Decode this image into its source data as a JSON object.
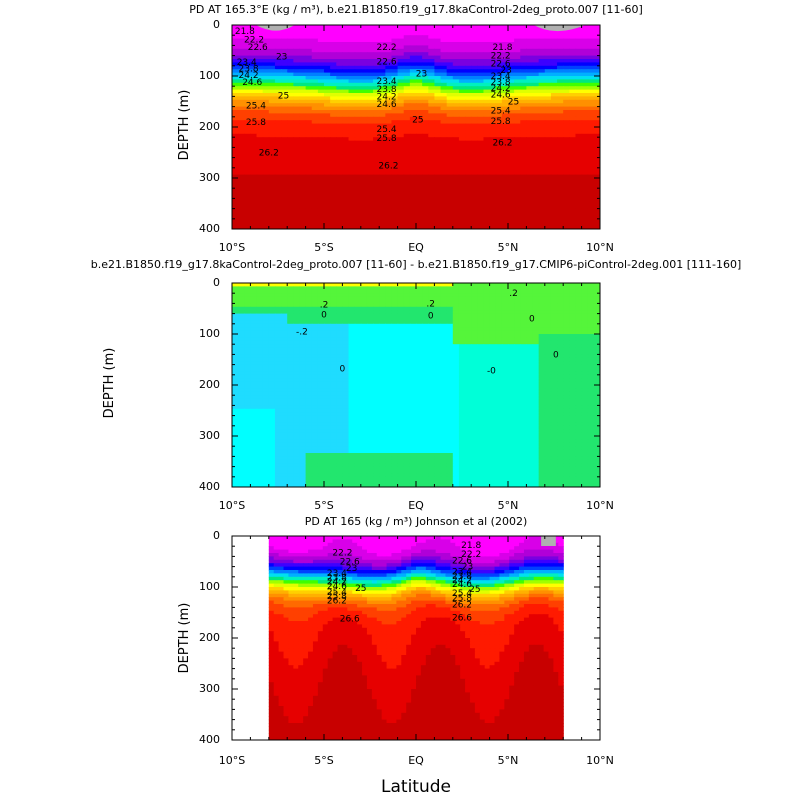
{
  "chart_data": [
    {
      "type": "heatmap",
      "title": "PD AT 165.3°E (kg / m³), b.e21.B1850.f19_g17.8kaControl-2deg_proto.007 [11-60]",
      "ylabel": "DEPTH (m)",
      "xlabel": "",
      "xlim": [
        -10,
        10
      ],
      "ylim": [
        0,
        400
      ],
      "x_ticks": [
        "10°S",
        "5°S",
        "EQ",
        "5°N",
        "10°N"
      ],
      "y_ticks": [
        "0",
        "100",
        "200",
        "300",
        "400"
      ],
      "data_extent": [
        -10,
        10
      ],
      "field_kind": "density",
      "contour_labels": [
        {
          "text": "21.8",
          "x": -9.3,
          "y": 12
        },
        {
          "text": "22.2",
          "x": -8.8,
          "y": 28
        },
        {
          "text": "22.6",
          "x": -8.6,
          "y": 43
        },
        {
          "text": "23",
          "x": -7.3,
          "y": 62
        },
        {
          "text": "23.4",
          "x": -9.2,
          "y": 73
        },
        {
          "text": "23.8",
          "x": -9.1,
          "y": 85
        },
        {
          "text": "24.2",
          "x": -9.1,
          "y": 98
        },
        {
          "text": "24.6",
          "x": -8.9,
          "y": 112
        },
        {
          "text": "25",
          "x": -7.2,
          "y": 138
        },
        {
          "text": "25.4",
          "x": -8.7,
          "y": 158
        },
        {
          "text": "25.8",
          "x": -8.7,
          "y": 190
        },
        {
          "text": "26.2",
          "x": -8.0,
          "y": 250
        },
        {
          "text": "22.2",
          "x": -1.6,
          "y": 43
        },
        {
          "text": "22.6",
          "x": -1.6,
          "y": 72
        },
        {
          "text": "23",
          "x": 0.3,
          "y": 95
        },
        {
          "text": "23.4",
          "x": -1.6,
          "y": 110
        },
        {
          "text": "23.8",
          "x": -1.6,
          "y": 125
        },
        {
          "text": "24.2",
          "x": -1.6,
          "y": 140
        },
        {
          "text": "24.6",
          "x": -1.6,
          "y": 155
        },
        {
          "text": "25",
          "x": 0.1,
          "y": 185
        },
        {
          "text": "25.4",
          "x": -1.6,
          "y": 204
        },
        {
          "text": "25.8",
          "x": -1.6,
          "y": 222
        },
        {
          "text": "26.2",
          "x": -1.5,
          "y": 275
        },
        {
          "text": "21.8",
          "x": 4.7,
          "y": 43
        },
        {
          "text": "22.2",
          "x": 4.6,
          "y": 60
        },
        {
          "text": "22.6",
          "x": 4.6,
          "y": 75
        },
        {
          "text": "23",
          "x": 4.9,
          "y": 88
        },
        {
          "text": "23.4",
          "x": 4.6,
          "y": 100
        },
        {
          "text": "23.8",
          "x": 4.6,
          "y": 112
        },
        {
          "text": "24.2",
          "x": 4.6,
          "y": 124
        },
        {
          "text": "24.6",
          "x": 4.6,
          "y": 136
        },
        {
          "text": "25",
          "x": 5.3,
          "y": 150
        },
        {
          "text": "25.4",
          "x": 4.6,
          "y": 168
        },
        {
          "text": "25.8",
          "x": 4.6,
          "y": 188
        },
        {
          "text": "26.2",
          "x": 4.7,
          "y": 230
        }
      ]
    },
    {
      "type": "heatmap",
      "title": "b.e21.B1850.f19_g17.8kaControl-2deg_proto.007 [11-60] - b.e21.B1850.f19_g17.CMIP6-piControl-2deg.001 [111-160]",
      "ylabel": "DEPTH (m)",
      "xlabel": "",
      "xlim": [
        -10,
        10
      ],
      "ylim": [
        0,
        400
      ],
      "x_ticks": [
        "10°S",
        "5°S",
        "EQ",
        "5°N",
        "10°N"
      ],
      "y_ticks": [
        "0",
        "100",
        "200",
        "300",
        "400"
      ],
      "data_extent": [
        -10,
        10
      ],
      "field_kind": "difference",
      "contour_labels": [
        {
          "text": ".2",
          "x": 5.3,
          "y": 20
        },
        {
          "text": ".2",
          "x": -5.0,
          "y": 42
        },
        {
          "text": ".2",
          "x": 0.8,
          "y": 40
        },
        {
          "text": "0",
          "x": -5.0,
          "y": 62
        },
        {
          "text": "0",
          "x": 0.8,
          "y": 64
        },
        {
          "text": "0",
          "x": 6.3,
          "y": 70
        },
        {
          "text": "-.2",
          "x": -6.2,
          "y": 95
        },
        {
          "text": "0",
          "x": 7.6,
          "y": 140
        },
        {
          "text": "0",
          "x": -4.0,
          "y": 168
        },
        {
          "text": "-0",
          "x": 4.1,
          "y": 172
        }
      ]
    },
    {
      "type": "heatmap",
      "title": "PD AT 165 (kg / m³) Johnson et al (2002)",
      "ylabel": "DEPTH (m)",
      "xlabel": "Latitude",
      "xlim": [
        -10,
        10
      ],
      "ylim": [
        0,
        400
      ],
      "x_ticks": [
        "10°S",
        "5°S",
        "EQ",
        "5°N",
        "10°N"
      ],
      "y_ticks": [
        "0",
        "100",
        "200",
        "300",
        "400"
      ],
      "data_extent": [
        -8,
        8
      ],
      "field_kind": "density_obs",
      "contour_labels": [
        {
          "text": "21.8",
          "x": 3.0,
          "y": 18
        },
        {
          "text": "22.2",
          "x": -4.0,
          "y": 32
        },
        {
          "text": "22.2",
          "x": 3.0,
          "y": 35
        },
        {
          "text": "22.6",
          "x": -3.6,
          "y": 50
        },
        {
          "text": "22.6",
          "x": 2.5,
          "y": 48
        },
        {
          "text": "23",
          "x": -3.5,
          "y": 63
        },
        {
          "text": "23",
          "x": 2.8,
          "y": 60
        },
        {
          "text": "23.4",
          "x": -4.3,
          "y": 73
        },
        {
          "text": "23.4",
          "x": 2.5,
          "y": 70
        },
        {
          "text": "23.8",
          "x": -4.3,
          "y": 81
        },
        {
          "text": "23.8",
          "x": 2.5,
          "y": 78
        },
        {
          "text": "24.2",
          "x": -4.3,
          "y": 89
        },
        {
          "text": "24.2",
          "x": 2.5,
          "y": 86
        },
        {
          "text": "24.6",
          "x": -4.3,
          "y": 98
        },
        {
          "text": "24.6",
          "x": 2.5,
          "y": 94
        },
        {
          "text": "25",
          "x": -3.0,
          "y": 102
        },
        {
          "text": "25",
          "x": 3.2,
          "y": 104
        },
        {
          "text": "25.4",
          "x": -4.3,
          "y": 110
        },
        {
          "text": "25.4",
          "x": 2.5,
          "y": 112
        },
        {
          "text": "25.8",
          "x": -4.3,
          "y": 118
        },
        {
          "text": "25.8",
          "x": 2.5,
          "y": 122
        },
        {
          "text": "26.2",
          "x": -4.3,
          "y": 126
        },
        {
          "text": "26.2",
          "x": 2.5,
          "y": 134
        },
        {
          "text": "26.6",
          "x": -3.6,
          "y": 162
        },
        {
          "text": "26.6",
          "x": 2.5,
          "y": 160
        }
      ]
    }
  ],
  "colors": {
    "density_ramp": [
      "#ff00ff",
      "#d800e8",
      "#b000d8",
      "#7a00e0",
      "#3d00ff",
      "#0000ff",
      "#0040ff",
      "#0080ff",
      "#00b0ff",
      "#00e0f0",
      "#00f0c0",
      "#00e880",
      "#40ff00",
      "#a0ff00",
      "#e0ff00",
      "#ffff00",
      "#ffd000",
      "#ffb000",
      "#ff9000",
      "#ff6a00",
      "#ff4000",
      "#ff1a00",
      "#e60000",
      "#c80000"
    ],
    "diff_ramp": [
      "#1fdcff",
      "#00ffff",
      "#00ffd8",
      "#22e66e",
      "#55f53a",
      "#ffff00",
      "#ffd23c"
    ],
    "land": "#b0b0b0"
  }
}
